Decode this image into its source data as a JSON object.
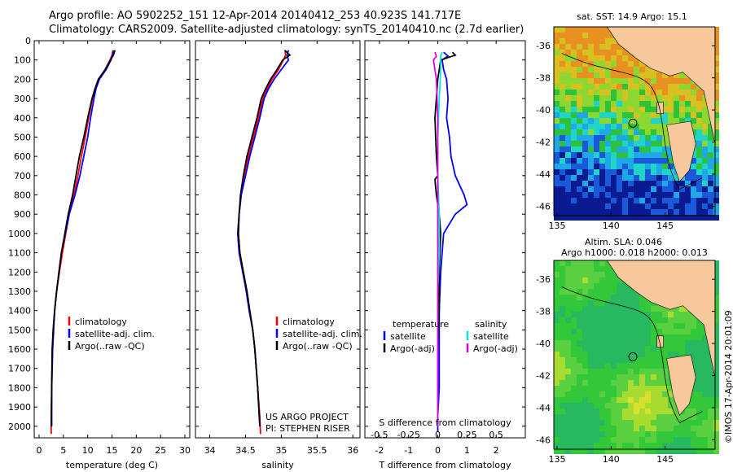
{
  "header": {
    "line1": "Argo profile: AO 5902252_151 12-Apr-2014 20140412_253 40.923S 141.717E",
    "line2": "Climatology: CARS2009. Satellite-adjusted climatology: synTS_20140410.nc (2.7d earlier)"
  },
  "colors": {
    "climatology": "#ff0000",
    "satellite": "#0000ff",
    "argo": "#000000",
    "sal_satellite": "#00e5e5",
    "sal_argo": "#e000e0"
  },
  "chart_data": [
    {
      "type": "line",
      "id": "temperature",
      "xlabel": "temperature (deg C)",
      "ylabel": "",
      "xlim": [
        -1,
        31
      ],
      "ylim": [
        2060,
        0
      ],
      "xticks": [
        0,
        5,
        10,
        15,
        20,
        25,
        30
      ],
      "xticklabels": [
        "0",
        "5",
        "10",
        "15",
        "20",
        "25",
        "30"
      ],
      "yticks": [
        0,
        100,
        200,
        300,
        400,
        500,
        600,
        700,
        800,
        900,
        1000,
        1100,
        1200,
        1300,
        1400,
        1500,
        1600,
        1700,
        1800,
        1900,
        2000
      ],
      "yticklabels": [
        "0",
        "100",
        "200",
        "300",
        "400",
        "500",
        "600",
        "700",
        "800",
        "900",
        "1000",
        "1100",
        "1200",
        "1300",
        "1400",
        "1500",
        "1600",
        "1700",
        "1800",
        "1900",
        "2000"
      ],
      "legend": [
        "climatology",
        "satellite-adj. clim.",
        "Argo(..raw -QC)"
      ],
      "series": [
        {
          "name": "climatology",
          "color": "#ff0000",
          "x": [
            15.2,
            15.0,
            14.6,
            13.6,
            12.2,
            11.5,
            11.0,
            10.2,
            9.5,
            8.7,
            8.0,
            7.2,
            6.2,
            5.5,
            4.8,
            4.2,
            3.6,
            3.2,
            2.9,
            2.7,
            2.6,
            2.5,
            2.5
          ],
          "y": [
            50,
            75,
            100,
            150,
            200,
            250,
            300,
            400,
            500,
            600,
            700,
            800,
            900,
            1000,
            1100,
            1200,
            1300,
            1400,
            1500,
            1600,
            1800,
            1950,
            2040
          ]
        },
        {
          "name": "satellite-adj. clim.",
          "color": "#0000ff",
          "x": [
            15.4,
            15.1,
            14.8,
            13.8,
            12.4,
            11.7,
            11.3,
            10.6,
            10.0,
            9.2,
            8.4,
            7.4,
            6.2,
            5.4,
            4.6,
            4.1,
            3.6,
            3.2,
            3.0,
            2.8,
            2.6,
            2.6
          ],
          "y": [
            50,
            75,
            100,
            150,
            200,
            250,
            300,
            400,
            500,
            600,
            700,
            800,
            900,
            1000,
            1100,
            1200,
            1300,
            1400,
            1500,
            1600,
            1800,
            2000
          ]
        },
        {
          "name": "Argo(..raw -QC)",
          "color": "#000000",
          "x": [
            15.6,
            15.3,
            14.7,
            13.6,
            12.2,
            11.5,
            10.9,
            10.0,
            9.2,
            8.3,
            7.6,
            6.9,
            6.0,
            5.3,
            4.6,
            4.1,
            3.6,
            3.2,
            2.9,
            2.7,
            2.6,
            2.5
          ],
          "y": [
            50,
            75,
            100,
            150,
            200,
            250,
            300,
            400,
            500,
            600,
            700,
            800,
            900,
            1000,
            1100,
            1200,
            1300,
            1400,
            1500,
            1600,
            1800,
            2000
          ]
        }
      ]
    },
    {
      "type": "line",
      "id": "salinity",
      "xlabel": "salinity",
      "ylabel": "",
      "xlim": [
        33.8,
        36.1
      ],
      "ylim": [
        2060,
        0
      ],
      "xticks": [
        34,
        34.5,
        35,
        35.5,
        36
      ],
      "xticklabels": [
        "34",
        "34.5",
        "35",
        "35.5",
        "36"
      ],
      "legend": [
        "climatology",
        "satellite-adj. clim.",
        "Argo(..raw -QC)"
      ],
      "annotations": [
        "US ARGO PROJECT",
        "PI: STEPHEN RISER"
      ],
      "series": [
        {
          "name": "climatology",
          "color": "#ff0000",
          "x": [
            35.05,
            35.06,
            35.03,
            34.96,
            34.87,
            34.8,
            34.74,
            34.68,
            34.61,
            34.54,
            34.48,
            34.44,
            34.41,
            34.4,
            34.42,
            34.47,
            34.52,
            34.56,
            34.6,
            34.63,
            34.67,
            34.7,
            34.71
          ],
          "y": [
            50,
            75,
            100,
            150,
            200,
            250,
            300,
            400,
            500,
            600,
            700,
            800,
            900,
            1000,
            1100,
            1200,
            1300,
            1400,
            1500,
            1600,
            1800,
            1950,
            2040
          ]
        },
        {
          "name": "satellite-adj. clim.",
          "color": "#0000ff",
          "x": [
            35.1,
            35.08,
            35.1,
            35.0,
            34.9,
            34.82,
            34.76,
            34.7,
            34.63,
            34.56,
            34.5,
            34.44,
            34.41,
            34.39,
            34.41,
            34.46,
            34.51,
            34.55,
            34.6,
            34.63,
            34.67,
            34.7
          ],
          "y": [
            50,
            75,
            100,
            150,
            200,
            250,
            300,
            400,
            500,
            600,
            700,
            800,
            900,
            1000,
            1100,
            1200,
            1300,
            1400,
            1500,
            1600,
            1800,
            2000
          ]
        },
        {
          "name": "Argo(..raw -QC)",
          "color": "#000000",
          "x": [
            35.05,
            35.12,
            35.02,
            34.94,
            34.85,
            34.78,
            34.72,
            34.66,
            34.59,
            34.52,
            34.47,
            34.43,
            34.41,
            34.4,
            34.42,
            34.47,
            34.52,
            34.56,
            34.6,
            34.63,
            34.67,
            34.7
          ],
          "y": [
            50,
            75,
            100,
            150,
            200,
            250,
            300,
            400,
            500,
            600,
            700,
            800,
            900,
            1000,
            1100,
            1200,
            1300,
            1400,
            1500,
            1600,
            1800,
            2000
          ]
        }
      ]
    },
    {
      "type": "line",
      "id": "difference",
      "xlabel": "T difference from climatology",
      "xlabel_top": "S difference from climatology",
      "xlim": [
        -2.5,
        3
      ],
      "ylim": [
        2060,
        0
      ],
      "xticks": [
        -2,
        -1,
        0,
        1,
        2
      ],
      "xticklabels": [
        "-2",
        "-1",
        "0",
        "1",
        "2"
      ],
      "xticks_s": [
        -0.5,
        -0.25,
        0,
        0.25,
        0.5
      ],
      "xticklabels_s": [
        "-0.5",
        "-0.25",
        "0",
        "0.25",
        "0.5"
      ],
      "legend_titles": [
        "temperature",
        "salinity"
      ],
      "legend": [
        "satellite",
        "Argo(-adj)",
        "satellite",
        "Argo(-adj)"
      ],
      "series": [
        {
          "name": "temperature satellite",
          "color": "#0000ff",
          "x": [
            0.2,
            0.35,
            0.15,
            0.2,
            0.3,
            0.35,
            0.3,
            0.4,
            0.45,
            0.6,
            0.9,
            1.0,
            0.6,
            0.2,
            0.15,
            0.1,
            0.05,
            0.05,
            0.05,
            0.0,
            0.0
          ],
          "y": [
            60,
            80,
            100,
            150,
            200,
            300,
            400,
            500,
            600,
            700,
            800,
            850,
            900,
            1000,
            1100,
            1200,
            1400,
            1600,
            1800,
            1950,
            2030
          ]
        },
        {
          "name": "temperature Argo(-adj)",
          "color": "#000000",
          "x": [
            0.5,
            0.6,
            0.3,
            0.1,
            0.05,
            0.0,
            -0.05,
            -0.1,
            -0.05,
            0.0,
            -0.1,
            -0.05,
            0.05,
            0.1,
            0.05,
            0.05,
            0.0,
            0.0,
            0.0
          ],
          "y": [
            60,
            75,
            90,
            100,
            150,
            200,
            300,
            400,
            600,
            700,
            720,
            800,
            900,
            1000,
            1200,
            1400,
            1600,
            1800,
            2000
          ]
        },
        {
          "name": "salinity satellite",
          "color": "#00e5e5",
          "x": [
            0.15,
            0.1,
            0.1,
            0.05,
            0.0,
            0.0,
            0.05,
            0.05,
            0.0,
            0.0,
            0.0,
            0.0
          ],
          "y": [
            60,
            80,
            150,
            300,
            500,
            700,
            900,
            1100,
            1300,
            1500,
            1800,
            2000
          ]
        },
        {
          "name": "salinity Argo(-adj)",
          "color": "#e000e0",
          "x": [
            -0.1,
            -0.05,
            -0.15,
            -0.05,
            0.0,
            0.0,
            0.0,
            0.0,
            0.0,
            0.0
          ],
          "y": [
            60,
            80,
            100,
            200,
            400,
            600,
            800,
            1000,
            1500,
            2000
          ]
        }
      ]
    }
  ],
  "maps": {
    "sst_title": "sat. SST: 14.9 Argo: 15.1",
    "sla_title1": "Altim. SLA: 0.046",
    "sla_title2": "Argo h1000: 0.018 h2000: 0.013",
    "xticklabels": [
      "135",
      "140",
      "145"
    ],
    "yticklabels": [
      "-36",
      "-38",
      "-40",
      "-42",
      "-44",
      "-46"
    ],
    "stamp": "©IMOS 17-Apr-2014 20:01:09"
  }
}
